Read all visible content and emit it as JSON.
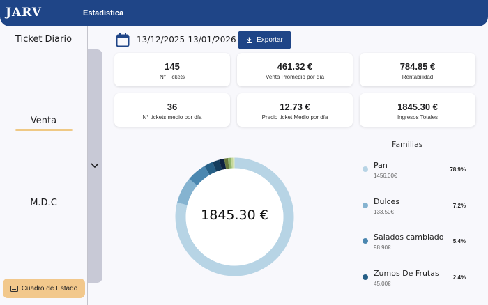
{
  "header": {
    "logo": "JARV",
    "title": "Estadística"
  },
  "sidebar": {
    "items": [
      {
        "label": "Ticket Diario"
      },
      {
        "label": "Venta",
        "active": true
      },
      {
        "label": "M.D.C"
      }
    ],
    "status_button": "Cuadro de Estado"
  },
  "toolbar": {
    "date_range": "13/12/2025-13/01/2026",
    "export_label": "Exportar"
  },
  "kpis": [
    {
      "value": "145",
      "label": "N° Tickets"
    },
    {
      "value": "461.32 €",
      "label": "Venta Promedio por día"
    },
    {
      "value": "784.85 €",
      "label": "Rentabilidad"
    },
    {
      "value": "36",
      "label": "N° tickets medio por día"
    },
    {
      "value": "12.73 €",
      "label": "Precio ticket Medio por día"
    },
    {
      "value": "1845.30 €",
      "label": "Ingresos Totales"
    }
  ],
  "chart_data": {
    "type": "pie",
    "donut": true,
    "center_label": "1845.30 €",
    "legend_title": "Familias",
    "slices": [
      {
        "name": "Pan",
        "amount": "1456.00€",
        "percent_label": "78.9%",
        "value": 78.9,
        "color": "#b7d4e5"
      },
      {
        "name": "Dulces",
        "amount": "133.50€",
        "percent_label": "7.2%",
        "value": 7.2,
        "color": "#85b3d0"
      },
      {
        "name": "Salados cambiado",
        "amount": "98.90€",
        "percent_label": "5.4%",
        "value": 5.4,
        "color": "#4b87b0"
      },
      {
        "name": "Zumos  De Frutas",
        "amount": "45.00€",
        "percent_label": "2.4%",
        "value": 2.4,
        "color": "#265f86"
      }
    ],
    "other_visible_slices": [
      {
        "value": 1.9,
        "color": "#143c5c"
      },
      {
        "value": 1.4,
        "color": "#0e2240"
      },
      {
        "value": 1.0,
        "color": "#6a7a3e"
      },
      {
        "value": 0.9,
        "color": "#8fb36a"
      },
      {
        "value": 0.5,
        "color": "#c4d89a"
      },
      {
        "value": 0.4,
        "color": "#e2ecc4"
      }
    ]
  },
  "colors": {
    "primary": "#1f4587",
    "accent": "#efc985",
    "rail": "#c8c9d6"
  }
}
